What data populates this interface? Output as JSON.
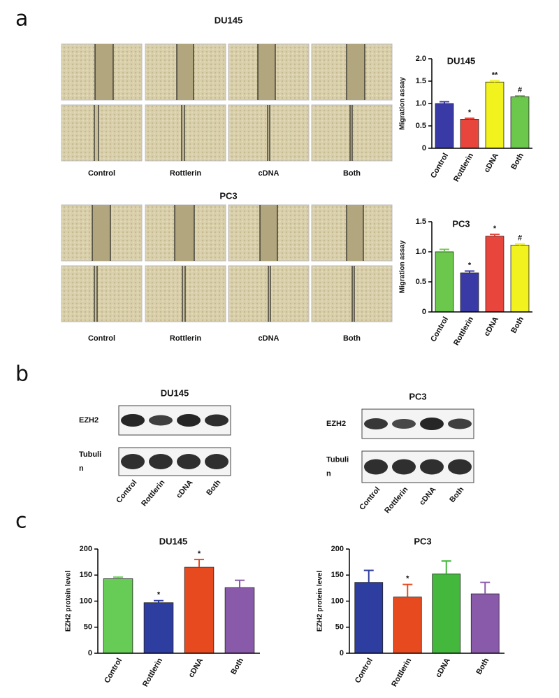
{
  "panels": [
    "a",
    "b",
    "c"
  ],
  "migration": [
    {
      "title": "DU145",
      "conditions": [
        "Control",
        "Rottlerin",
        "cDNA",
        "Both"
      ]
    },
    {
      "title": "PC3",
      "conditions": [
        "Control",
        "Rottlerin",
        "cDNA",
        "Both"
      ]
    }
  ],
  "blots": [
    {
      "title": "DU145",
      "rows": [
        [
          "EZH2"
        ],
        [
          "Tubuli",
          "n"
        ]
      ],
      "lanes": [
        "Control",
        "Rottlerin",
        "cDNA",
        "Both"
      ]
    },
    {
      "title": "PC3",
      "rows": [
        [
          "EZH2"
        ],
        [
          "Tubuli",
          "n"
        ]
      ],
      "lanes": [
        "Control",
        "Rottlerin",
        "cDNA",
        "Both"
      ]
    }
  ],
  "chart_data": [
    {
      "type": "bar",
      "title": "DU145",
      "y_label": "Migration assay",
      "categories": [
        "Control",
        "Rottlerin",
        "cDNA",
        "Both"
      ],
      "values": [
        1.0,
        0.65,
        1.48,
        1.15
      ],
      "errors": [
        0.04,
        0.02,
        0.03,
        0.02
      ],
      "annotations": [
        null,
        "*",
        "**",
        "#"
      ],
      "colors": [
        "#3a3aa6",
        "#e8453c",
        "#f2f21e",
        "#6cc84c"
      ],
      "ylim": [
        0,
        2
      ],
      "yticks": [
        0,
        0.5,
        {
          "value": 1,
          "label": "1.0"
        },
        1.5,
        {
          "value": 2,
          "label": "2.0"
        }
      ]
    },
    {
      "type": "bar",
      "title": "PC3",
      "y_label": "Migration assay",
      "categories": [
        "Control",
        "Rottlerin",
        "cDNA",
        "Both"
      ],
      "values": [
        1.0,
        0.65,
        1.26,
        1.11
      ],
      "errors": [
        0.04,
        0.03,
        0.03,
        0.02
      ],
      "annotations": [
        null,
        "*",
        "*",
        "#"
      ],
      "colors": [
        "#6cc84c",
        "#3a3aa6",
        "#e8453c",
        "#f2f21e"
      ],
      "ylim": [
        0,
        1.5
      ],
      "yticks": [
        0,
        0.5,
        {
          "value": 1,
          "label": "1.0"
        },
        1.5
      ]
    },
    {
      "type": "bar",
      "title": "DU145",
      "y_label": "EZH2 protein level",
      "categories": [
        "Control",
        "Rottlerin",
        "cDNA",
        "Both"
      ],
      "values": [
        143,
        97,
        165,
        126
      ],
      "errors": [
        3,
        4,
        15,
        14
      ],
      "annotations": [
        null,
        "*",
        "*",
        null
      ],
      "colors": [
        "#66cc55",
        "#2e3da0",
        "#e84a1f",
        "#8a5aaa"
      ],
      "ylim": [
        0,
        200
      ],
      "yticks": [
        0,
        50,
        100,
        150,
        200
      ]
    },
    {
      "type": "bar",
      "title": "PC3",
      "y_label": "EZH2 protein level",
      "categories": [
        "Control",
        "Rottlerin",
        "cDNA",
        "Both"
      ],
      "values": [
        136,
        108,
        152,
        114
      ],
      "errors": [
        23,
        24,
        25,
        22
      ],
      "annotations": [
        null,
        "*",
        null,
        null
      ],
      "colors": [
        "#2e3da0",
        "#e84a1f",
        "#44b83c",
        "#8a5aaa"
      ],
      "ylim": [
        0,
        200
      ],
      "yticks": [
        0,
        50,
        100,
        150,
        200
      ]
    }
  ]
}
